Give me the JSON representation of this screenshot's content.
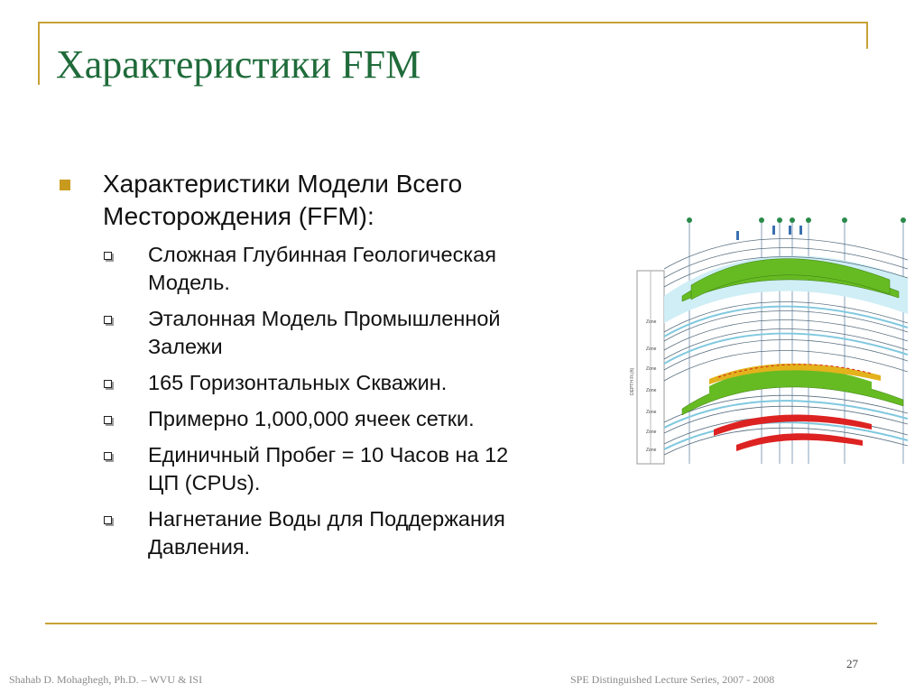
{
  "slide": {
    "title": "Характеристики FFM",
    "main_bullet": {
      "line1": "Характеристики Модели Всего",
      "line2": "Месторождения (FFM):"
    },
    "sub_bullets": [
      {
        "line1": "Сложная Глубинная Геологическая",
        "line2": "Модель."
      },
      {
        "line1": "Эталонная Модель Промышленной",
        "line2": "Залежи"
      },
      {
        "line1": "165 Горизонтальных Скважин.",
        "line2": ""
      },
      {
        "line1": "Примерно 1,000,000 ячеек сетки.",
        "line2": ""
      },
      {
        "line1": "Единичный Пробег  = 10 Часов на 12",
        "line2": "ЦП (CPUs)."
      },
      {
        "line1": "Нагнетание Воды для Поддержания",
        "line2": "Давления."
      }
    ],
    "page_number": "27"
  },
  "footer": {
    "left": "Shahab D. Mohaghegh, Ph.D. – WVU & ISI",
    "right": "SPE Distinguished Lecture Series, 2007 - 2008"
  },
  "colors": {
    "accent_gold": "#c8a136",
    "title_green": "#1f6b3a",
    "bullet_gold": "#c89a1e",
    "diagram_green": "#66bb22",
    "diagram_red": "#dd2222",
    "diagram_cyan": "#bfe6f2"
  },
  "diagram": {
    "zone_labels": [
      "Zone",
      "Zone",
      "Zone",
      "Zone",
      "Zone",
      "Zone",
      "Zone"
    ],
    "depth_axis_label": "DEPTH Ft.(ft)"
  }
}
